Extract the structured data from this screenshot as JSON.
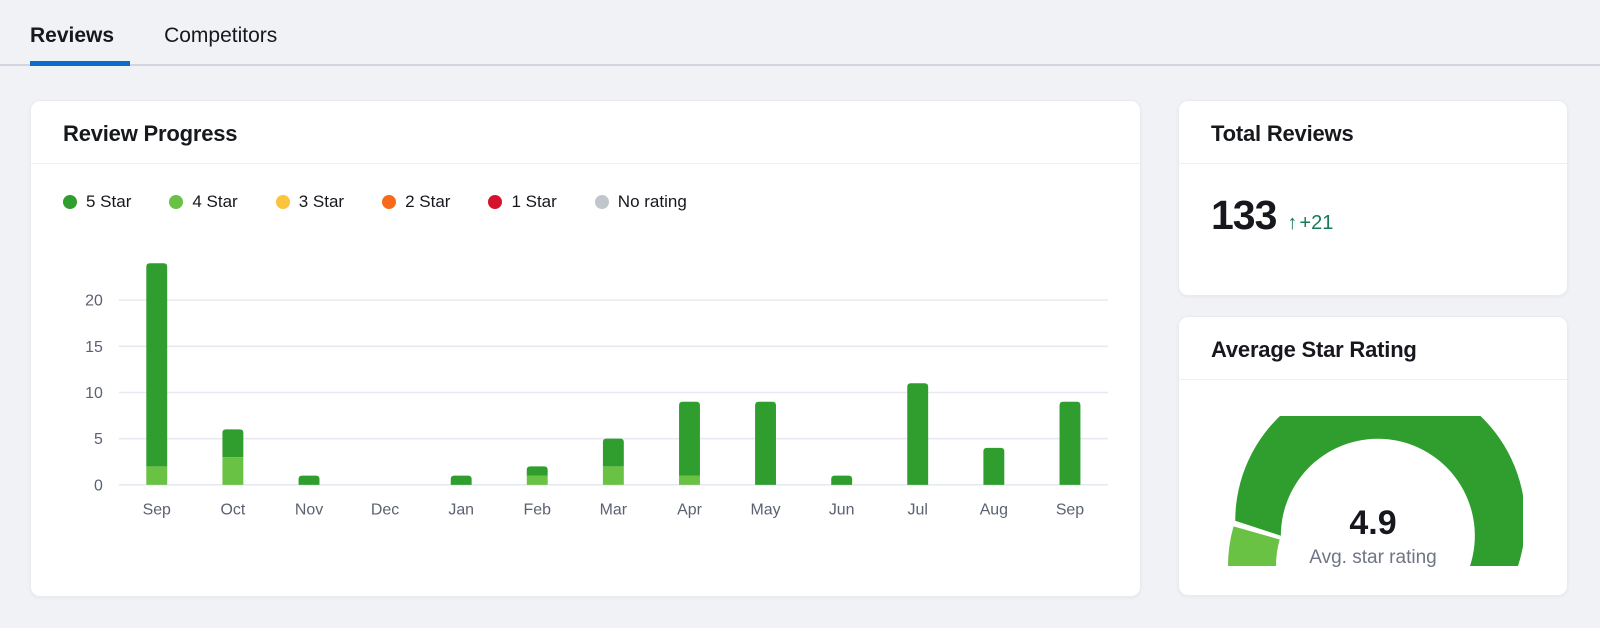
{
  "colors": {
    "accent_blue": "#0a6bcf",
    "delta_green": "#177a5a",
    "axis_text": "#5a6170",
    "gridline": "#e8eaf1"
  },
  "tabs": {
    "items": [
      {
        "label": "Reviews",
        "active": true
      },
      {
        "label": "Competitors",
        "active": false
      }
    ]
  },
  "review_progress": {
    "title": "Review Progress",
    "legend": [
      {
        "label": "5 Star",
        "color": "#2f9e2f"
      },
      {
        "label": "4 Star",
        "color": "#69c244"
      },
      {
        "label": "3 Star",
        "color": "#fac43c"
      },
      {
        "label": "2 Star",
        "color": "#f9691b"
      },
      {
        "label": "1 Star",
        "color": "#d6112b"
      },
      {
        "label": "No rating",
        "color": "#c1c5cc"
      }
    ]
  },
  "chart_data": {
    "type": "bar",
    "stacked": true,
    "title": "Review Progress",
    "xlabel": "",
    "ylabel": "",
    "categories": [
      "Sep",
      "Oct",
      "Nov",
      "Dec",
      "Jan",
      "Feb",
      "Mar",
      "Apr",
      "May",
      "Jun",
      "Jul",
      "Aug",
      "Sep"
    ],
    "series": [
      {
        "name": "5 Star",
        "color": "#2f9e2f",
        "values": [
          22,
          3,
          1,
          0,
          1,
          1,
          3,
          8,
          9,
          1,
          11,
          4,
          9
        ]
      },
      {
        "name": "4 Star",
        "color": "#69c244",
        "values": [
          2,
          3,
          0,
          0,
          0,
          1,
          2,
          1,
          0,
          0,
          0,
          0,
          0
        ]
      },
      {
        "name": "3 Star",
        "color": "#fac43c",
        "values": [
          0,
          0,
          0,
          0,
          0,
          0,
          0,
          0,
          0,
          0,
          0,
          0,
          0
        ]
      },
      {
        "name": "2 Star",
        "color": "#f9691b",
        "values": [
          0,
          0,
          0,
          0,
          0,
          0,
          0,
          0,
          0,
          0,
          0,
          0,
          0
        ]
      },
      {
        "name": "1 Star",
        "color": "#d6112b",
        "values": [
          0,
          0,
          0,
          0,
          0,
          0,
          0,
          0,
          0,
          0,
          0,
          0,
          0
        ]
      },
      {
        "name": "No rating",
        "color": "#c1c5cc",
        "values": [
          0,
          0,
          0,
          0,
          0,
          0,
          0,
          0,
          0,
          0,
          0,
          0,
          0
        ]
      }
    ],
    "ylim": [
      0,
      25
    ],
    "yticks": [
      0,
      5,
      10,
      15,
      20
    ],
    "grid": true,
    "legend_position": "top"
  },
  "total_reviews": {
    "title": "Total Reviews",
    "value": "133",
    "arrow": "↑",
    "delta": "+21"
  },
  "avg_rating": {
    "title": "Average Star Rating",
    "value": "4.9",
    "label": "Avg. star rating",
    "gauge": {
      "segments": [
        {
          "name": "4 Star",
          "color": "#69c244",
          "from": 0.0,
          "to": 0.088
        },
        {
          "name": "5 Star",
          "color": "#2f9e2f",
          "from": 0.101,
          "to": 1.0
        }
      ]
    }
  }
}
